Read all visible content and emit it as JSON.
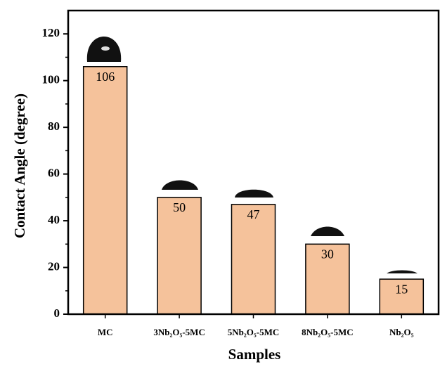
{
  "chart_data": {
    "type": "bar",
    "x_label": "Samples",
    "y_label": "Contact Angle (degree)",
    "categories": [
      "MC",
      "3Nb₂O₅-5MC",
      "5Nb₂O₅-5MC",
      "8Nb₂O₅-5MC",
      "Nb₂O₅"
    ],
    "values": [
      106,
      50,
      47,
      30,
      15
    ],
    "color": "#f5c29b",
    "ylim": [
      0,
      130
    ],
    "yticks": [
      0,
      20,
      40,
      60,
      80,
      100,
      120
    ]
  }
}
